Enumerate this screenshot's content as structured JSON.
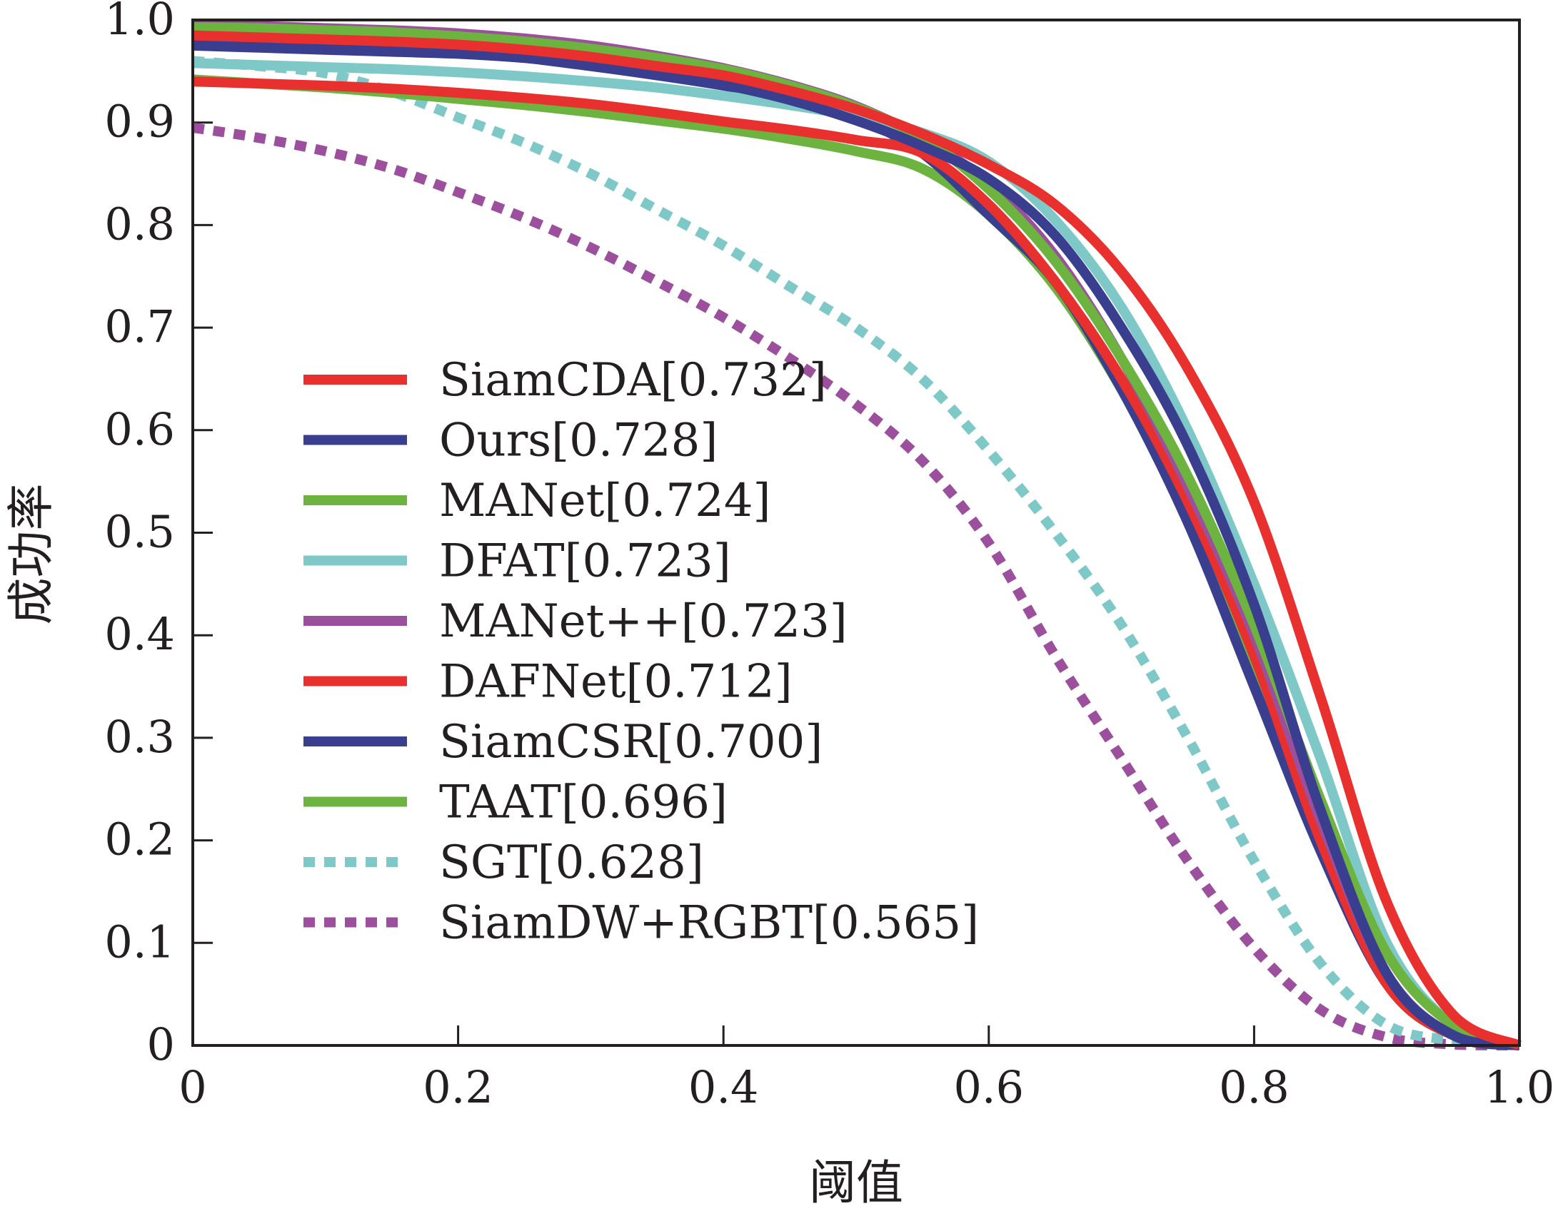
{
  "chart_data": {
    "type": "line",
    "title": "",
    "xlabel": "阈值",
    "ylabel": "成功率",
    "xlim": [
      0,
      1.0
    ],
    "ylim": [
      0,
      1.0
    ],
    "xticks": [
      "0",
      "0.2",
      "0.4",
      "0.6",
      "0.8",
      "1.0"
    ],
    "yticks": [
      "0",
      "0.1",
      "0.2",
      "0.3",
      "0.4",
      "0.5",
      "0.6",
      "0.7",
      "0.8",
      "0.9",
      "1.0"
    ],
    "grid": false,
    "legend_position": "center-left",
    "x": [
      0,
      0.05,
      0.1,
      0.15,
      0.2,
      0.25,
      0.3,
      0.35,
      0.4,
      0.45,
      0.5,
      0.55,
      0.6,
      0.65,
      0.7,
      0.75,
      0.8,
      0.85,
      0.9,
      0.95,
      1.0
    ],
    "series": [
      {
        "name": "SiamCDA[0.732]",
        "color": "#e8312f",
        "style": "solid",
        "values": [
          0.985,
          0.983,
          0.981,
          0.979,
          0.976,
          0.971,
          0.964,
          0.955,
          0.946,
          0.931,
          0.913,
          0.889,
          0.859,
          0.82,
          0.755,
          0.66,
          0.53,
          0.34,
          0.14,
          0.03,
          0.0
        ]
      },
      {
        "name": "Ours[0.728]",
        "color": "#3a3e8f",
        "style": "solid",
        "values": [
          0.975,
          0.973,
          0.971,
          0.969,
          0.967,
          0.963,
          0.957,
          0.948,
          0.937,
          0.922,
          0.902,
          0.877,
          0.845,
          0.79,
          0.7,
          0.585,
          0.43,
          0.23,
          0.07,
          0.01,
          0.0
        ]
      },
      {
        "name": "MANet[0.724]",
        "color": "#6cb33f",
        "style": "solid",
        "values": [
          0.993,
          0.992,
          0.99,
          0.988,
          0.984,
          0.979,
          0.972,
          0.963,
          0.952,
          0.936,
          0.915,
          0.885,
          0.835,
          0.765,
          0.67,
          0.555,
          0.41,
          0.24,
          0.09,
          0.02,
          0.0
        ]
      },
      {
        "name": "DFAT[0.723]",
        "color": "#7ec8c8",
        "style": "solid",
        "values": [
          0.958,
          0.956,
          0.954,
          0.952,
          0.949,
          0.945,
          0.94,
          0.934,
          0.926,
          0.917,
          0.906,
          0.89,
          0.862,
          0.805,
          0.72,
          0.6,
          0.45,
          0.28,
          0.1,
          0.02,
          0.0
        ]
      },
      {
        "name": "MANet++[0.723]",
        "color": "#9b4f9c",
        "style": "solid",
        "values": [
          0.995,
          0.994,
          0.992,
          0.99,
          0.987,
          0.982,
          0.975,
          0.965,
          0.953,
          0.937,
          0.916,
          0.885,
          0.84,
          0.77,
          0.67,
          0.545,
          0.4,
          0.22,
          0.07,
          0.01,
          0.0
        ]
      },
      {
        "name": "DAFNet[0.712]",
        "color": "#e8312f",
        "style": "solid",
        "values": [
          0.94,
          0.938,
          0.936,
          0.933,
          0.929,
          0.924,
          0.918,
          0.91,
          0.901,
          0.893,
          0.883,
          0.87,
          0.82,
          0.745,
          0.65,
          0.53,
          0.38,
          0.2,
          0.06,
          0.01,
          0.0
        ]
      },
      {
        "name": "SiamCSR[0.700]",
        "color": "#3a3e8f",
        "style": "solid",
        "values": [
          0.98,
          0.978,
          0.975,
          0.972,
          0.968,
          0.963,
          0.955,
          0.946,
          0.936,
          0.924,
          0.905,
          0.87,
          0.81,
          0.745,
          0.64,
          0.51,
          0.35,
          0.19,
          0.06,
          0.01,
          0.0
        ]
      },
      {
        "name": "TAAT[0.696]",
        "color": "#6cb33f",
        "style": "solid",
        "values": [
          0.942,
          0.938,
          0.934,
          0.929,
          0.923,
          0.917,
          0.91,
          0.902,
          0.894,
          0.884,
          0.872,
          0.855,
          0.81,
          0.74,
          0.64,
          0.52,
          0.37,
          0.2,
          0.06,
          0.01,
          0.0
        ]
      },
      {
        "name": "SGT[0.628]",
        "color": "#7ec8c8",
        "style": "dotted",
        "values": [
          0.96,
          0.955,
          0.948,
          0.93,
          0.905,
          0.88,
          0.85,
          0.815,
          0.78,
          0.74,
          0.7,
          0.65,
          0.58,
          0.5,
          0.41,
          0.3,
          0.18,
          0.08,
          0.02,
          0.005,
          0.0
        ]
      },
      {
        "name": "SiamDW+RGBT[0.565]",
        "color": "#9b4f9c",
        "style": "dotted",
        "values": [
          0.895,
          0.885,
          0.872,
          0.855,
          0.832,
          0.807,
          0.778,
          0.745,
          0.71,
          0.67,
          0.625,
          0.57,
          0.49,
          0.38,
          0.28,
          0.18,
          0.095,
          0.035,
          0.008,
          0.001,
          0.0
        ]
      }
    ]
  }
}
